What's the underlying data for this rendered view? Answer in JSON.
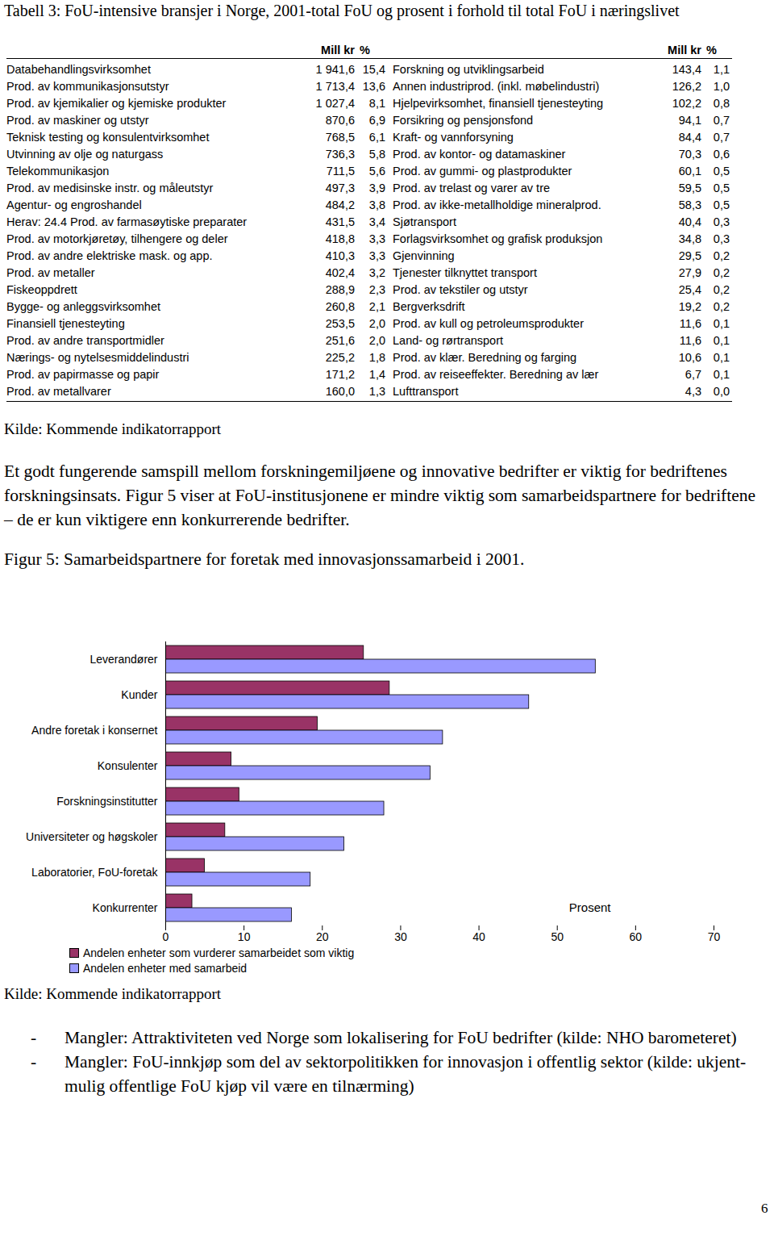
{
  "table": {
    "title": "Tabell 3: FoU-intensive bransjer i Norge, 2001-total FoU og prosent i forhold til total FoU i næringslivet",
    "header": [
      "Mill kr",
      "%"
    ],
    "left": [
      [
        "Databehandlingsvirksomhet",
        "1 941,6",
        "15,4"
      ],
      [
        "Prod. av kommunikasjonsutstyr",
        "1 713,4",
        "13,6"
      ],
      [
        "Prod. av kjemikalier og kjemiske produkter",
        "1 027,4",
        "8,1"
      ],
      [
        "Prod. av maskiner og utstyr",
        "870,6",
        "6,9"
      ],
      [
        "Teknisk testing og konsulentvirksomhet",
        "768,5",
        "6,1"
      ],
      [
        "Utvinning av olje og naturgass",
        "736,3",
        "5,8"
      ],
      [
        "Telekommunikasjon",
        "711,5",
        "5,6"
      ],
      [
        "Prod. av medisinske instr. og måleutstyr",
        "497,3",
        "3,9"
      ],
      [
        "Agentur- og engroshandel",
        "484,2",
        "3,8"
      ],
      [
        "Herav: 24.4 Prod. av farmasøytiske preparater",
        "431,5",
        "3,4"
      ],
      [
        "Prod. av motorkjøretøy, tilhengere og deler",
        "418,8",
        "3,3"
      ],
      [
        "Prod. av andre elektriske mask. og app.",
        "410,3",
        "3,3"
      ],
      [
        "Prod. av metaller",
        "402,4",
        "3,2"
      ],
      [
        "Fiskeoppdrett",
        "288,9",
        "2,3"
      ],
      [
        "Bygge- og anleggsvirksomhet",
        "260,8",
        "2,1"
      ],
      [
        "Finansiell tjenesteyting",
        "253,5",
        "2,0"
      ],
      [
        "Prod. av andre transportmidler",
        "251,6",
        "2,0"
      ],
      [
        "Nærings- og nytelsesmiddelindustri",
        "225,2",
        "1,8"
      ],
      [
        "Prod. av papirmasse og papir",
        "171,2",
        "1,4"
      ],
      [
        "Prod. av metallvarer",
        "160,0",
        "1,3"
      ]
    ],
    "right": [
      [
        "Forskning og utviklingsarbeid",
        "143,4",
        "1,1"
      ],
      [
        "Annen industriprod. (inkl. møbelindustri)",
        "126,2",
        "1,0"
      ],
      [
        "Hjelpevirksomhet, finansiell tjenesteyting",
        "102,2",
        "0,8"
      ],
      [
        "Forsikring og pensjonsfond",
        "94,1",
        "0,7"
      ],
      [
        "Kraft- og vannforsyning",
        "84,4",
        "0,7"
      ],
      [
        "Prod. av kontor- og datamaskiner",
        "70,3",
        "0,6"
      ],
      [
        "Prod. av gummi- og plastprodukter",
        "60,1",
        "0,5"
      ],
      [
        "Prod. av trelast og varer av tre",
        "59,5",
        "0,5"
      ],
      [
        "Prod. av ikke-metallholdige mineralprod.",
        "58,3",
        "0,5"
      ],
      [
        "Sjøtransport",
        "40,4",
        "0,3"
      ],
      [
        "Forlagsvirksomhet og grafisk produksjon",
        "34,8",
        "0,3"
      ],
      [
        "Gjenvinning",
        "29,5",
        "0,2"
      ],
      [
        "Tjenester tilknyttet transport",
        "27,9",
        "0,2"
      ],
      [
        "Prod. av tekstiler og utstyr",
        "25,4",
        "0,2"
      ],
      [
        "Bergverksdrift",
        "19,2",
        "0,2"
      ],
      [
        "Prod. av kull og petroleumsprodukter",
        "11,6",
        "0,1"
      ],
      [
        "Land- og rørtransport",
        "11,6",
        "0,1"
      ],
      [
        "Prod. av klær. Beredning og farging",
        "10,6",
        "0,1"
      ],
      [
        "Prod. av reiseeffekter. Beredning av lær",
        "6,7",
        "0,1"
      ],
      [
        "Lufttransport",
        "4,3",
        "0,0"
      ]
    ]
  },
  "source_1": "Kilde: Kommende indikatorrapport",
  "paragraph": "Et godt fungerende samspill mellom forskningemiljøene og innovative bedrifter er viktig for bedriftenes forskningsinsats. Figur 5 viser at FoU-institusjonene er mindre viktig som samarbeidspartnere for bedriftene – de er kun viktigere enn konkurrerende bedrifter.",
  "figure_caption": "Figur 5: Samarbeidspartnere for foretak med innovasjonssamarbeid i 2001.",
  "chart_data": {
    "type": "bar",
    "orientation": "horizontal",
    "x_label": "Prosent",
    "categories": [
      "Leverandører",
      "Kunder",
      "Andre foretak i konsernet",
      "Konsulenter",
      "Forskningsinstitutter",
      "Universiteter og høgskoler",
      "Laboratorier, FoU-foretak",
      "Konkurrenter"
    ],
    "series": [
      {
        "name": "Andelen enheter som vurderer samarbeidet som viktig",
        "color": "#993366",
        "values": [
          25.3,
          28.6,
          19.4,
          8.4,
          9.4,
          7.6,
          5.0,
          3.4
        ]
      },
      {
        "name": "Andelen enheter med samarbeid",
        "color": "#9999ff",
        "values": [
          54.9,
          46.4,
          35.4,
          33.8,
          27.9,
          22.8,
          18.5,
          16.1
        ]
      }
    ],
    "xlim": [
      0,
      70
    ],
    "xticks": [
      0,
      10,
      20,
      30,
      40,
      50,
      60,
      70
    ],
    "grid": false,
    "legend": "bottom"
  },
  "source_2": "Kilde: Kommende indikatorrapport",
  "bullets": [
    "Mangler: Attraktiviteten ved Norge som lokalisering for FoU bedrifter (kilde: NHO barometeret)",
    "Mangler: FoU-innkjøp som del av sektorpolitikken for innovasjon i offentlig sektor (kilde: ukjent-mulig offentlige FoU kjøp vil være en tilnærming)"
  ],
  "bullet_mark": "-",
  "page_number": "6"
}
